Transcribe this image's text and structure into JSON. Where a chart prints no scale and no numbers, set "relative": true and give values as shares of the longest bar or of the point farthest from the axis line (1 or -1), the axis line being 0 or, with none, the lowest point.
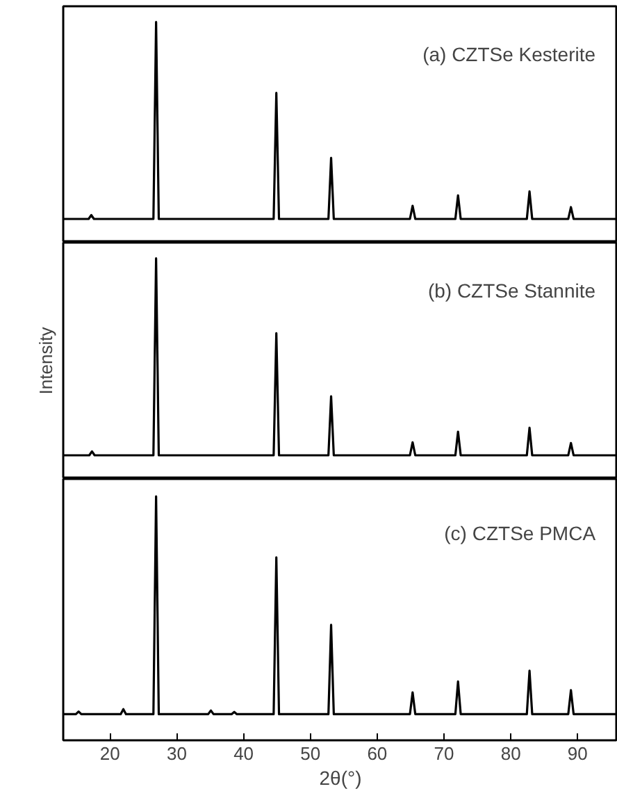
{
  "chart_data": [
    {
      "type": "line",
      "relative": true,
      "xlim": [
        13,
        96
      ],
      "tick_labels": false,
      "annotations": [
        "(a) CZTSe Kesterite"
      ],
      "series": [
        {
          "color": "#000000",
          "x": [
            13,
            16.8,
            17.2,
            17.6,
            26.5,
            26.9,
            27.3,
            44.5,
            44.9,
            45.3,
            52.7,
            53.1,
            53.5,
            64.9,
            65.3,
            65.7,
            71.7,
            72.1,
            72.5,
            82.4,
            82.8,
            83.2,
            88.6,
            89.0,
            89.4,
            96
          ],
          "values": [
            0,
            0,
            0.02,
            0,
            0,
            1,
            0,
            0,
            0.64,
            0,
            0,
            0.31,
            0,
            0,
            0.067,
            0,
            0,
            0.12,
            0,
            0,
            0.14,
            0,
            0,
            0.06,
            0,
            0
          ]
        }
      ]
    },
    {
      "type": "line",
      "relative": true,
      "xlim": [
        13,
        96
      ],
      "tick_labels": false,
      "ylabel": "Intensity",
      "annotations": [
        "(b) CZTSe Stannite"
      ],
      "series": [
        {
          "color": "#000000",
          "x": [
            13,
            16.9,
            17.3,
            17.7,
            26.5,
            26.9,
            27.3,
            44.5,
            44.9,
            45.3,
            52.7,
            53.1,
            53.5,
            64.9,
            65.3,
            65.7,
            71.7,
            72.1,
            72.5,
            82.4,
            82.8,
            83.2,
            88.6,
            89.0,
            89.4,
            96
          ],
          "values": [
            0,
            0,
            0.02,
            0,
            0,
            1,
            0,
            0,
            0.62,
            0,
            0,
            0.3,
            0,
            0,
            0.066,
            0,
            0,
            0.12,
            0,
            0,
            0.14,
            0,
            0,
            0.062,
            0,
            0
          ]
        }
      ]
    },
    {
      "type": "line",
      "relative": true,
      "xlim": [
        13,
        96
      ],
      "xticks": [
        20,
        30,
        40,
        50,
        60,
        70,
        80,
        90
      ],
      "tick_labels": "x",
      "xlabel": "2θ(°)",
      "annotations": [
        "(c) CZTSe PMCA"
      ],
      "series": [
        {
          "color": "#000000",
          "x": [
            13,
            14.9,
            15.3,
            15.7,
            21.6,
            22.0,
            22.4,
            26.5,
            26.9,
            27.3,
            34.7,
            35.1,
            35.5,
            38.2,
            38.6,
            39.0,
            44.5,
            44.9,
            45.3,
            52.7,
            53.1,
            53.5,
            64.9,
            65.3,
            65.7,
            71.7,
            72.1,
            72.5,
            82.4,
            82.8,
            83.2,
            88.6,
            89.0,
            89.4,
            96
          ],
          "values": [
            0,
            0,
            0.012,
            0,
            0,
            0.023,
            0,
            0,
            1,
            0,
            0,
            0.017,
            0,
            0,
            0.01,
            0,
            0,
            0.72,
            0,
            0,
            0.41,
            0,
            0,
            0.1,
            0,
            0,
            0.15,
            0,
            0,
            0.2,
            0,
            0,
            0.11,
            0,
            0
          ]
        }
      ]
    }
  ]
}
